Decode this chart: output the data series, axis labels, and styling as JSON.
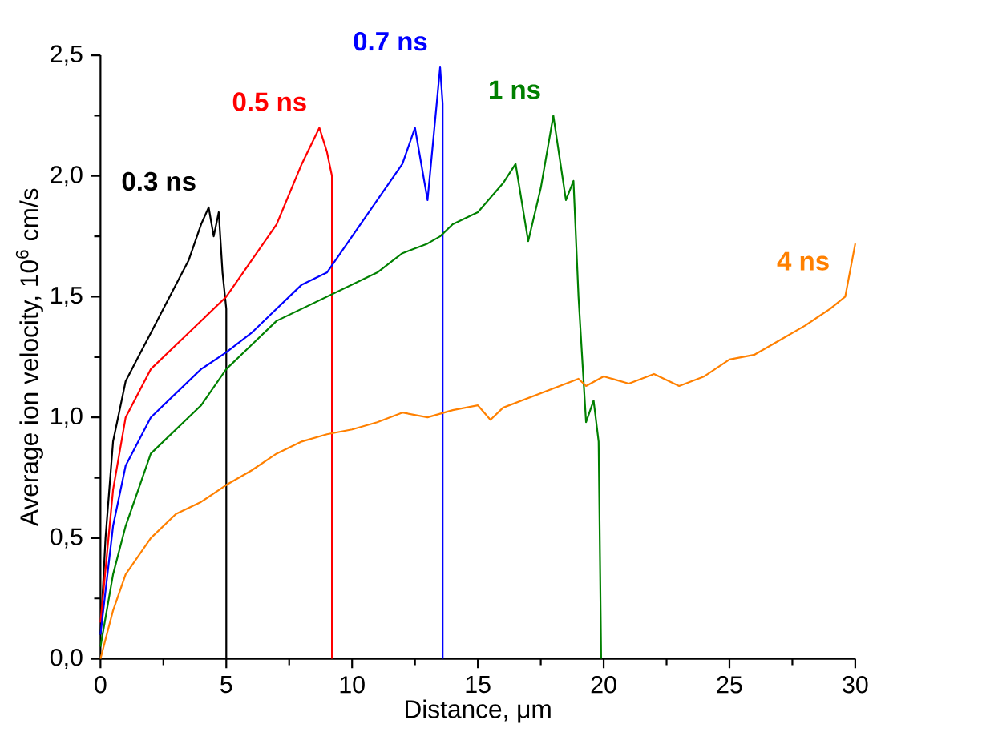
{
  "chart_data": {
    "type": "line",
    "xlabel": "Distance, μm",
    "ylabel": "Average ion velocity, 10$^{6}$ cm/s",
    "xlim": [
      0,
      30
    ],
    "ylim": [
      0,
      2.5
    ],
    "xticks": [
      0,
      5,
      10,
      15,
      20,
      25,
      30
    ],
    "yticks": [
      {
        "value": 0,
        "label": "0,0"
      },
      {
        "value": 0.5,
        "label": "0,5"
      },
      {
        "value": 1,
        "label": "1,0"
      },
      {
        "value": 1.5,
        "label": "1,5"
      },
      {
        "value": 2,
        "label": "2,0"
      },
      {
        "value": 2.5,
        "label": "2,5"
      }
    ],
    "grid": false,
    "legend": false,
    "marker": "none",
    "line_style": "solid",
    "series": [
      {
        "name": "0.3 ns",
        "color": "#000000",
        "x": [
          0,
          0.2,
          0.5,
          1,
          1.5,
          2,
          2.5,
          3,
          3.5,
          4,
          4.3,
          4.5,
          4.7,
          4.85,
          5,
          5
        ],
        "values": [
          0.1,
          0.5,
          0.9,
          1.15,
          1.25,
          1.35,
          1.45,
          1.55,
          1.65,
          1.8,
          1.87,
          1.75,
          1.85,
          1.6,
          1.45,
          0
        ]
      },
      {
        "name": "0.5 ns",
        "color": "#ff0000",
        "x": [
          0,
          0.5,
          1,
          2,
          3,
          4,
          5,
          6,
          7,
          8,
          8.7,
          9,
          9.2,
          9.2
        ],
        "values": [
          0.15,
          0.7,
          1.0,
          1.2,
          1.3,
          1.4,
          1.5,
          1.65,
          1.8,
          2.05,
          2.2,
          2.1,
          2.0,
          0
        ]
      },
      {
        "name": "0.7 ns",
        "color": "#0000ff",
        "x": [
          0,
          0.5,
          1,
          2,
          3,
          4,
          5,
          6,
          7,
          8,
          9,
          10,
          11,
          12,
          12.5,
          13,
          13.5,
          13.6,
          13.6
        ],
        "values": [
          0.1,
          0.55,
          0.8,
          1.0,
          1.1,
          1.2,
          1.27,
          1.35,
          1.45,
          1.55,
          1.6,
          1.75,
          1.9,
          2.05,
          2.2,
          1.9,
          2.45,
          2.3,
          0
        ]
      },
      {
        "name": "1 ns",
        "color": "#008000",
        "x": [
          0,
          0.5,
          1,
          2,
          3,
          4,
          5,
          6,
          7,
          8,
          9,
          10,
          11,
          12,
          13,
          13.5,
          14,
          15,
          16,
          16.5,
          17,
          17.5,
          18,
          18.5,
          18.8,
          19,
          19.3,
          19.6,
          19.8,
          19.9
        ],
        "values": [
          0.05,
          0.35,
          0.55,
          0.85,
          0.95,
          1.05,
          1.2,
          1.3,
          1.4,
          1.45,
          1.5,
          1.55,
          1.6,
          1.68,
          1.72,
          1.75,
          1.8,
          1.85,
          1.97,
          2.05,
          1.73,
          1.95,
          2.25,
          1.9,
          1.98,
          1.5,
          0.98,
          1.07,
          0.9,
          0
        ]
      },
      {
        "name": "4 ns",
        "color": "#ff8000",
        "x": [
          0,
          0.5,
          1,
          2,
          3,
          4,
          5,
          6,
          7,
          8,
          9,
          10,
          11,
          12,
          13,
          14,
          15,
          15.5,
          16,
          17,
          18,
          19,
          19.3,
          20,
          21,
          22,
          23,
          24,
          25,
          26,
          27,
          28,
          29,
          29.6,
          30
        ],
        "values": [
          0,
          0.2,
          0.35,
          0.5,
          0.6,
          0.65,
          0.72,
          0.78,
          0.85,
          0.9,
          0.93,
          0.95,
          0.98,
          1.02,
          1.0,
          1.03,
          1.05,
          0.99,
          1.04,
          1.08,
          1.12,
          1.16,
          1.13,
          1.17,
          1.14,
          1.18,
          1.13,
          1.17,
          1.24,
          1.26,
          1.32,
          1.38,
          1.45,
          1.5,
          1.72
        ]
      }
    ]
  }
}
